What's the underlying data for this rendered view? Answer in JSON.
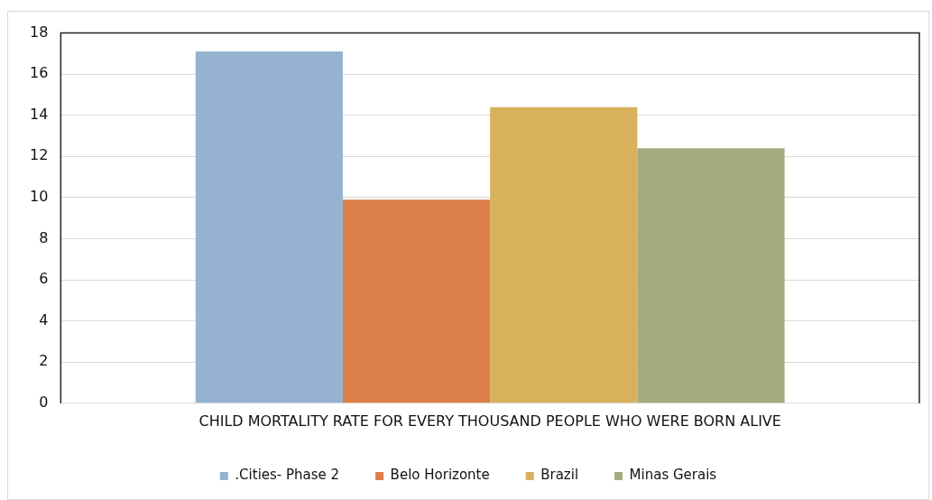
{
  "chart_data": {
    "type": "bar",
    "categories": [
      "CHILD MORTALITY RATE FOR EVERY THOUSAND PEOPLE WHO WERE BORN ALIVE"
    ],
    "series": [
      {
        "name": ".Cities- Phase 2",
        "color": "#95b3d1",
        "values": [
          17.1
        ]
      },
      {
        "name": "Belo Horizonte",
        "color": "#dd7f48",
        "values": [
          9.9
        ]
      },
      {
        "name": "Brazil",
        "color": "#d8b15d",
        "values": [
          14.4
        ]
      },
      {
        "name": "Minas Gerais",
        "color": "#a4ab80",
        "values": [
          12.4
        ]
      }
    ],
    "ylim": [
      0,
      18
    ],
    "yticks": [
      0,
      2,
      4,
      6,
      8,
      10,
      12,
      14,
      16,
      18
    ],
    "grid": "y",
    "legend": "bottom"
  }
}
